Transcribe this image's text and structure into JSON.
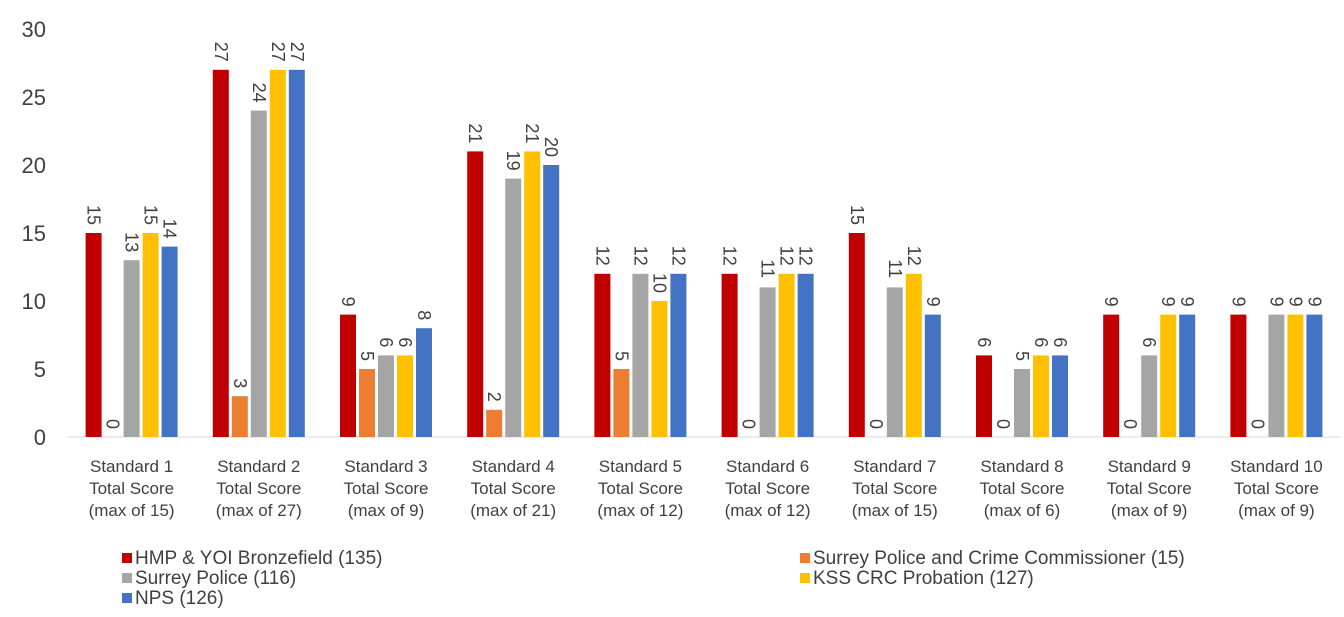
{
  "chart_data": {
    "type": "bar",
    "title": "",
    "xlabel": "",
    "ylabel": "",
    "ylim": [
      0,
      30
    ],
    "yticks": [
      "0",
      "5",
      "10",
      "15",
      "20",
      "25",
      "30"
    ],
    "grid": false,
    "legend_position": "bottom",
    "categories": [
      [
        "Standard 1",
        "Total Score",
        "(max of 15)"
      ],
      [
        "Standard 2",
        "Total Score",
        "(max of 27)"
      ],
      [
        "Standard 3",
        "Total Score",
        "(max of 9)"
      ],
      [
        "Standard 4",
        "Total Score",
        "(max of 21)"
      ],
      [
        "Standard 5",
        "Total Score",
        "(max of 12)"
      ],
      [
        "Standard 6",
        "Total Score",
        "(max of 12)"
      ],
      [
        "Standard 7",
        "Total Score",
        "(max of 15)"
      ],
      [
        "Standard 8",
        "Total Score",
        "(max of 6)"
      ],
      [
        "Standard 9",
        "Total Score",
        "(max of 9)"
      ],
      [
        "Standard 10",
        "Total Score",
        "(max of 9)"
      ]
    ],
    "series": [
      {
        "name": "HMP & YOI Bronzefield (135)",
        "color": "#C00000",
        "values": [
          15,
          27,
          9,
          21,
          12,
          12,
          15,
          6,
          9,
          9
        ]
      },
      {
        "name": "Surrey Police and Crime Commissioner (15)",
        "color": "#ED7D31",
        "values": [
          0,
          3,
          5,
          2,
          5,
          0,
          0,
          0,
          0,
          0
        ]
      },
      {
        "name": "Surrey Police (116)",
        "color": "#A5A5A5",
        "values": [
          13,
          24,
          6,
          19,
          12,
          11,
          11,
          5,
          6,
          9
        ]
      },
      {
        "name": "KSS CRC Probation (127)",
        "color": "#FFC000",
        "values": [
          15,
          27,
          6,
          21,
          10,
          12,
          12,
          6,
          9,
          9
        ]
      },
      {
        "name": "NPS (126)",
        "color": "#4472C4",
        "values": [
          14,
          27,
          8,
          20,
          12,
          12,
          9,
          6,
          9,
          9
        ]
      }
    ]
  }
}
